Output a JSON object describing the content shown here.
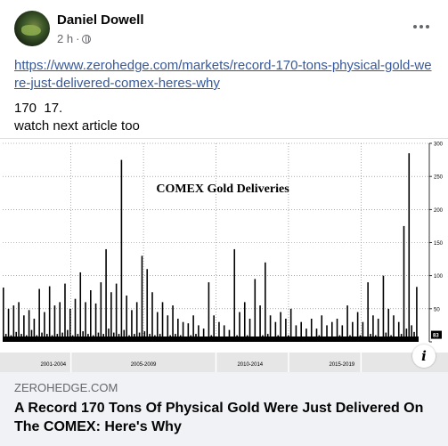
{
  "post": {
    "author": "Daniel Dowell",
    "time": "2 h",
    "separator": "·",
    "link_text": "https://www.zerohedge.com/markets/record-170-tons-physical-gold-were-just-delivered-comex-heres-why",
    "line1": "170  17.",
    "line2": "watch next article too"
  },
  "card": {
    "domain": "ZEROHEDGE.COM",
    "headline": "A Record 170 Tons Of Physical Gold Were Just Delivered On The COMEX: Here's Why",
    "info_glyph": "i"
  },
  "chart_data": {
    "type": "bar",
    "title": "COMEX Gold Deliveries",
    "x_tick_labels": [
      "2001-2004",
      "2005-2009",
      "2010-2014",
      "2015-2019"
    ],
    "y_ticks": [
      0,
      50,
      100,
      150,
      200,
      250,
      300
    ],
    "y_tick_labels": [
      "0",
      "50",
      "100",
      "150",
      "200",
      "250",
      "300"
    ],
    "ylim": [
      0,
      300
    ],
    "last_value_label": "83",
    "series": [
      {
        "values": [
          82,
          12,
          50,
          10,
          55,
          15,
          60,
          12,
          40,
          10,
          48,
          18,
          35,
          10,
          80,
          14,
          45,
          12,
          84,
          10,
          55,
          12,
          60,
          14,
          88,
          18,
          50,
          10,
          65,
          12,
          105,
          16,
          60,
          12,
          78,
          10,
          58,
          14,
          90,
          12,
          140,
          20,
          75,
          14,
          88,
          12,
          275,
          18,
          70,
          10,
          48,
          12,
          60,
          14,
          130,
          16,
          110,
          12,
          75,
          10,
          45,
          12,
          60,
          8,
          40,
          10,
          55,
          12,
          35,
          10,
          30,
          8,
          28,
          10,
          40,
          12,
          25,
          8,
          20,
          6,
          90,
          10,
          40,
          8,
          30,
          6,
          25,
          8,
          18,
          6,
          140,
          10,
          45,
          8,
          60,
          10,
          35,
          6,
          95,
          8,
          55,
          10,
          120,
          12,
          40,
          8,
          30,
          10,
          45,
          8,
          35,
          10,
          50,
          8,
          25,
          6,
          30,
          8,
          20,
          6,
          35,
          8,
          20,
          10,
          40,
          8,
          25,
          6,
          30,
          8,
          35,
          10,
          25,
          6,
          55,
          10,
          30,
          8,
          45,
          10,
          30,
          8,
          90,
          12,
          40,
          10,
          35,
          8,
          100,
          14,
          50,
          10,
          40,
          8,
          30,
          12,
          175,
          20,
          285,
          25,
          15,
          83
        ]
      }
    ]
  }
}
